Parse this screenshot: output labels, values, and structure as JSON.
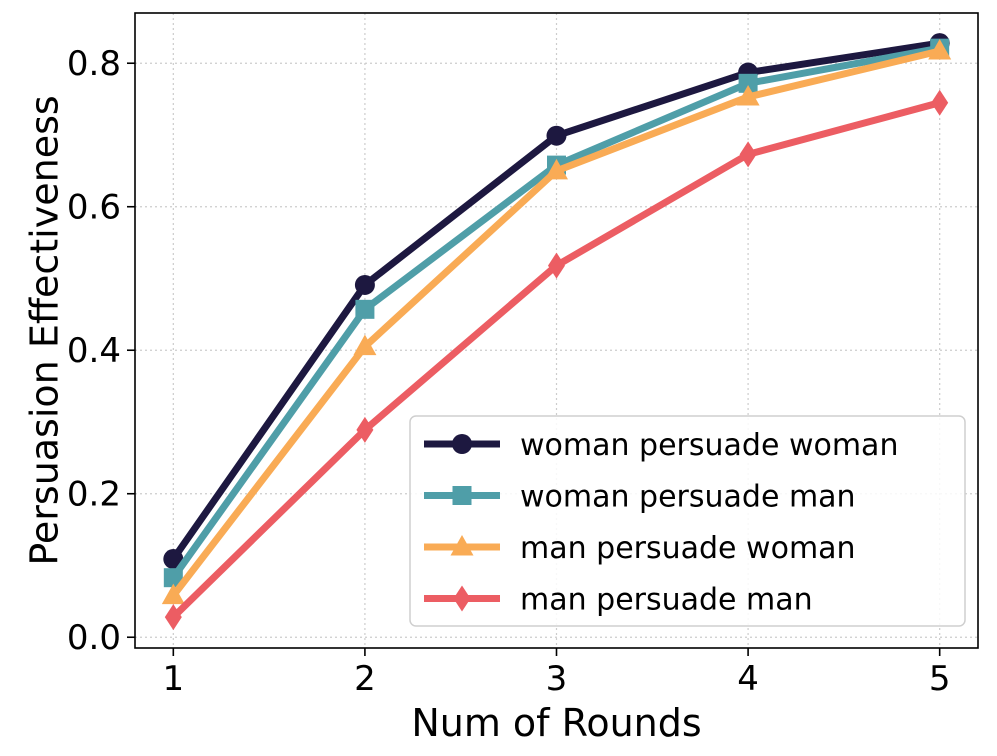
{
  "chart_data": {
    "type": "line",
    "title": "",
    "xlabel": "Num of Rounds",
    "ylabel": "Persuasion Effectiveness",
    "x": [
      1,
      2,
      3,
      4,
      5
    ],
    "xticks": [
      "1",
      "2",
      "3",
      "4",
      "5"
    ],
    "yticks": [
      "0.0",
      "0.2",
      "0.4",
      "0.6",
      "0.8"
    ],
    "ytick_values": [
      0.0,
      0.2,
      0.4,
      0.6,
      0.8
    ],
    "xlim": [
      0.8,
      5.2
    ],
    "ylim": [
      -0.015,
      0.87
    ],
    "grid": true,
    "legend_position": "lower-right",
    "series": [
      {
        "name": "woman persuade woman",
        "values": [
          0.109,
          0.491,
          0.699,
          0.787,
          0.828
        ],
        "color": "#1d1840",
        "marker": "circle"
      },
      {
        "name": "woman persuade man",
        "values": [
          0.083,
          0.457,
          0.658,
          0.772,
          0.821
        ],
        "color": "#4f9ea8",
        "marker": "square"
      },
      {
        "name": "man persuade woman",
        "values": [
          0.058,
          0.405,
          0.65,
          0.753,
          0.817
        ],
        "color": "#f9ab55",
        "marker": "triangle"
      },
      {
        "name": "man persuade man",
        "values": [
          0.028,
          0.289,
          0.518,
          0.673,
          0.745
        ],
        "color": "#ec5d63",
        "marker": "diamond"
      }
    ]
  }
}
